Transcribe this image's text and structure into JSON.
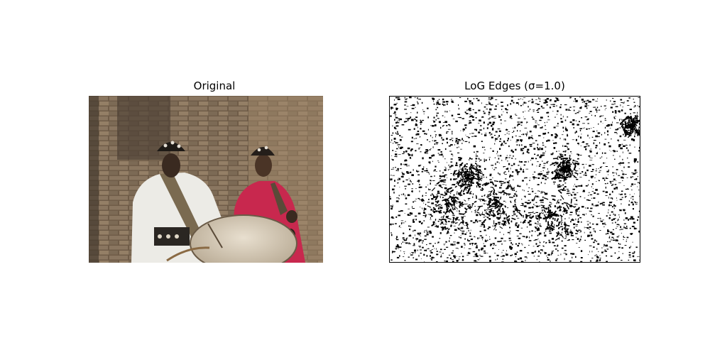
{
  "panels": [
    {
      "title": "Original"
    },
    {
      "title": "LoG Edges (σ=1.0)"
    }
  ]
}
